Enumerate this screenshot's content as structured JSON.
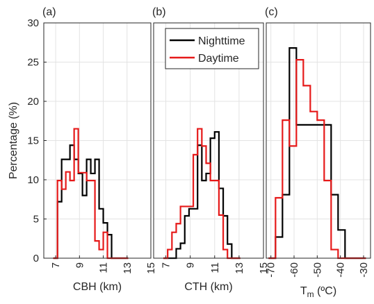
{
  "figure": {
    "ylabel": "Percentage (%)"
  },
  "colors": {
    "nighttime": "#000000",
    "daytime": "#e61919",
    "grid": "#e3e3e3",
    "axis": "#262626"
  },
  "legend": {
    "placement": "top-center of panel (b)",
    "entries": [
      "Nighttime",
      "Daytime"
    ]
  },
  "chart_data": [
    {
      "type": "line",
      "style": "stairs",
      "panel_label": "(a)",
      "xlabel": "CBH (km)",
      "ylabel": "Percentage (%)",
      "xlim": [
        6,
        15
      ],
      "ylim": [
        0,
        30
      ],
      "xticks": [
        7,
        9,
        11,
        13,
        15
      ],
      "yticks": [
        0,
        5,
        10,
        15,
        20,
        25,
        30
      ],
      "grid": true,
      "series": [
        {
          "name": "Nighttime",
          "x": [
            6.8,
            7.15,
            7.5,
            7.85,
            8.2,
            8.55,
            8.9,
            9.25,
            9.6,
            9.95,
            10.3,
            10.65,
            11.0,
            11.35,
            11.7,
            12.05,
            12.4,
            12.75,
            13.1
          ],
          "y": [
            0,
            7.2,
            12.6,
            12.6,
            14.4,
            12.6,
            10.8,
            8.0,
            12.6,
            10.8,
            12.6,
            6.3,
            4.5,
            3.0,
            0,
            0,
            0,
            0,
            0
          ]
        },
        {
          "name": "Daytime",
          "x": [
            6.8,
            7.15,
            7.5,
            7.85,
            8.2,
            8.55,
            8.9,
            9.25,
            9.6,
            9.95,
            10.3,
            10.65,
            11.0,
            11.35,
            11.7,
            12.05,
            12.4,
            12.75,
            13.1
          ],
          "y": [
            0,
            9.9,
            8.8,
            11.0,
            9.9,
            16.5,
            10.9,
            10.9,
            9.9,
            9.9,
            2.2,
            1.1,
            3.3,
            0,
            0,
            0,
            0,
            0,
            0
          ]
        }
      ]
    },
    {
      "type": "line",
      "style": "stairs",
      "panel_label": "(b)",
      "xlabel": "CTH (km)",
      "xlim": [
        6,
        15
      ],
      "ylim": [
        0,
        30
      ],
      "xticks": [
        7,
        9,
        11,
        13,
        15
      ],
      "grid": true,
      "series": [
        {
          "name": "Nighttime",
          "x": [
            6.8,
            7.15,
            7.5,
            7.85,
            8.2,
            8.55,
            8.9,
            9.25,
            9.6,
            9.95,
            10.3,
            10.65,
            11.0,
            11.35,
            11.7,
            12.05,
            12.4,
            12.75,
            13.1
          ],
          "y": [
            0,
            0,
            0,
            1.2,
            1.9,
            5.4,
            6.3,
            6.3,
            14.4,
            9.9,
            10.8,
            15.3,
            16.1,
            8.9,
            5.4,
            1.8,
            0,
            0,
            0
          ]
        },
        {
          "name": "Daytime",
          "x": [
            6.8,
            7.15,
            7.5,
            7.85,
            8.2,
            8.55,
            8.9,
            9.25,
            9.6,
            9.95,
            10.3,
            10.65,
            11.0,
            11.35,
            11.7,
            12.05,
            12.4,
            12.75,
            13.1
          ],
          "y": [
            0,
            1.1,
            3.3,
            4.4,
            6.6,
            6.6,
            6.6,
            13.2,
            16.5,
            14.3,
            12.1,
            9.9,
            9.9,
            5.5,
            1.1,
            0,
            0,
            0,
            0
          ]
        }
      ]
    },
    {
      "type": "line",
      "style": "stairs",
      "panel_label": "(c)",
      "xlabel": "T",
      "xlabel_sub": "m",
      "xlabel_unit": " (ºC)",
      "xlim": [
        -72,
        -27
      ],
      "ylim": [
        0,
        30
      ],
      "xticks": [
        -70,
        -60,
        -50,
        -40,
        -30
      ],
      "grid": true,
      "series": [
        {
          "name": "Nighttime",
          "x": [
            -71,
            -68,
            -65,
            -62,
            -59,
            -56,
            -53,
            -50,
            -47,
            -44,
            -41,
            -38,
            -35,
            -32,
            -29
          ],
          "y": [
            0,
            2.7,
            8.1,
            26.8,
            17.0,
            17.0,
            17.0,
            17.0,
            17.0,
            8.1,
            3.6,
            0,
            0,
            0,
            0
          ]
        },
        {
          "name": "Daytime",
          "x": [
            -71,
            -68,
            -65,
            -62,
            -59,
            -56,
            -53,
            -50,
            -47,
            -44,
            -41,
            -38,
            -35,
            -32,
            -29
          ],
          "y": [
            0,
            7.7,
            17.6,
            14.3,
            25.3,
            22.0,
            18.7,
            17.6,
            9.9,
            1.1,
            0,
            0,
            0,
            0,
            0
          ]
        }
      ]
    }
  ]
}
